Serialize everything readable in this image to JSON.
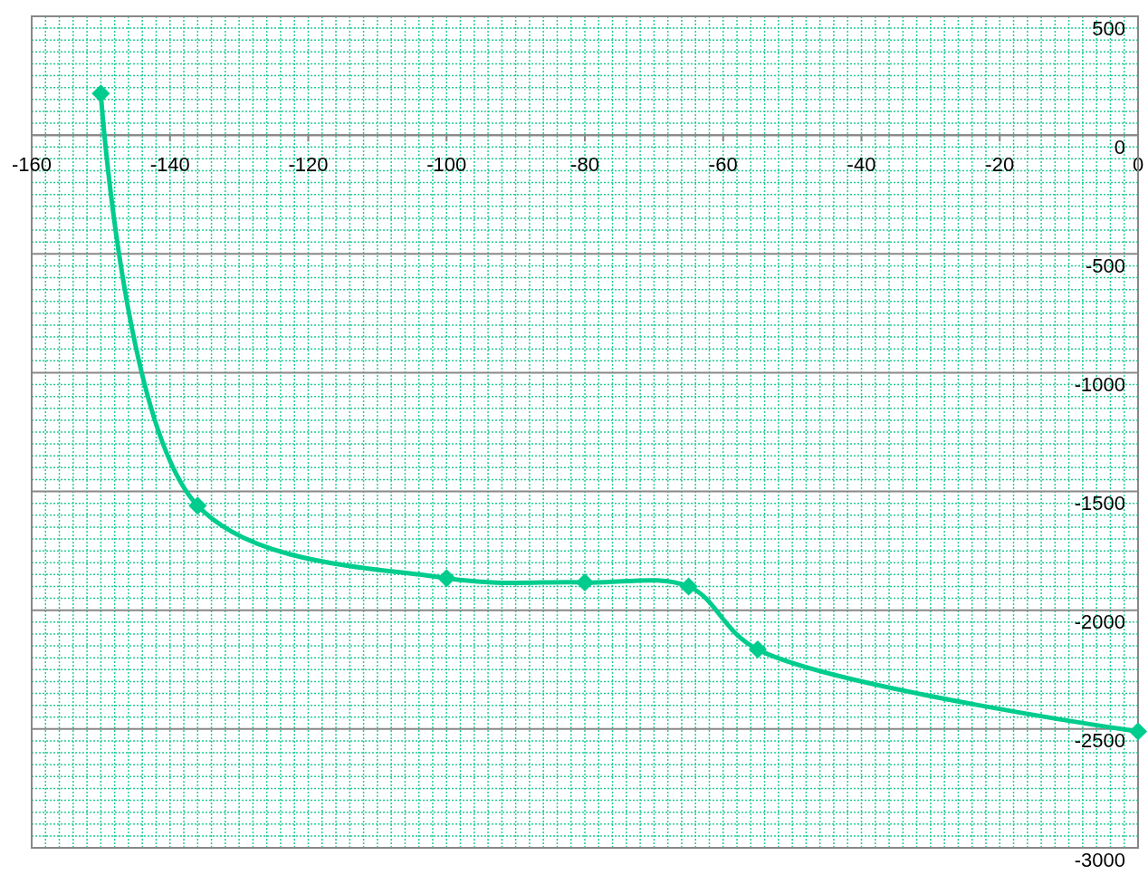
{
  "chart_data": {
    "type": "line",
    "x": [
      -150,
      -136,
      -100,
      -80,
      -65,
      -55,
      0
    ],
    "series": [
      {
        "color": "#00cc8e",
        "values": [
          175,
          -1560,
          -1865,
          -1883,
          -1900,
          -2165,
          -2510
        ]
      }
    ],
    "xlim": [
      -160,
      0
    ],
    "xticks": [
      -160,
      {
        "value": -158,
        "label": null
      },
      {
        "value": -156,
        "label": null
      },
      {
        "value": -154,
        "label": null
      },
      {
        "value": -152,
        "label": null
      },
      {
        "value": -150,
        "label": null
      },
      {
        "value": -148,
        "label": null
      },
      {
        "value": -146,
        "label": null
      },
      {
        "value": -144,
        "label": null
      },
      {
        "value": -142,
        "label": null
      },
      -140,
      {
        "value": -138,
        "label": null
      },
      {
        "value": -136,
        "label": null
      },
      {
        "value": -134,
        "label": null
      },
      {
        "value": -132,
        "label": null
      },
      {
        "value": -130,
        "label": null
      },
      {
        "value": -128,
        "label": null
      },
      {
        "value": -126,
        "label": null
      },
      {
        "value": -124,
        "label": null
      },
      {
        "value": -122,
        "label": null
      },
      -120,
      {
        "value": -118,
        "label": null
      },
      {
        "value": -116,
        "label": null
      },
      {
        "value": -114,
        "label": null
      },
      {
        "value": -112,
        "label": null
      },
      {
        "value": -110,
        "label": null
      },
      {
        "value": -108,
        "label": null
      },
      {
        "value": -106,
        "label": null
      },
      {
        "value": -104,
        "label": null
      },
      {
        "value": -102,
        "label": null
      },
      -100,
      {
        "value": -98,
        "label": null
      },
      {
        "value": -96,
        "label": null
      },
      {
        "value": -94,
        "label": null
      },
      {
        "value": -92,
        "label": null
      },
      {
        "value": -90,
        "label": null
      },
      {
        "value": -88,
        "label": null
      },
      {
        "value": -86,
        "label": null
      },
      {
        "value": -84,
        "label": null
      },
      {
        "value": -82,
        "label": null
      },
      -80,
      {
        "value": -78,
        "label": null
      },
      {
        "value": -76,
        "label": null
      },
      {
        "value": -74,
        "label": null
      },
      {
        "value": -72,
        "label": null
      },
      {
        "value": -70,
        "label": null
      },
      {
        "value": -68,
        "label": null
      },
      {
        "value": -66,
        "label": null
      },
      {
        "value": -64,
        "label": null
      },
      {
        "value": -62,
        "label": null
      },
      -60,
      {
        "value": -58,
        "label": null
      },
      {
        "value": -56,
        "label": null
      },
      {
        "value": -54,
        "label": null
      },
      {
        "value": -52,
        "label": null
      },
      {
        "value": -50,
        "label": null
      },
      {
        "value": -48,
        "label": null
      },
      {
        "value": -46,
        "label": null
      },
      {
        "value": -44,
        "label": null
      },
      {
        "value": -42,
        "label": null
      },
      -40,
      {
        "value": -38,
        "label": null
      },
      {
        "value": -36,
        "label": null
      },
      {
        "value": -34,
        "label": null
      },
      {
        "value": -32,
        "label": null
      },
      {
        "value": -30,
        "label": null
      },
      {
        "value": -28,
        "label": null
      },
      {
        "value": -26,
        "label": null
      },
      {
        "value": -24,
        "label": null
      },
      {
        "value": -22,
        "label": null
      },
      -20,
      {
        "value": -18,
        "label": null
      },
      {
        "value": -16,
        "label": null
      },
      {
        "value": -14,
        "label": null
      },
      {
        "value": -12,
        "label": null
      },
      {
        "value": -10,
        "label": null
      },
      {
        "value": -8,
        "label": null
      },
      {
        "value": -6,
        "label": null
      },
      {
        "value": -4,
        "label": null
      },
      {
        "value": -2,
        "label": null
      },
      0
    ],
    "ylim": [
      -3000,
      500
    ],
    "yticks": [
      -3000,
      {
        "value": -2950,
        "label": null
      },
      {
        "value": -2900,
        "label": null
      },
      {
        "value": -2850,
        "label": null
      },
      {
        "value": -2800,
        "label": null
      },
      {
        "value": -2750,
        "label": null
      },
      {
        "value": -2700,
        "label": null
      },
      {
        "value": -2650,
        "label": null
      },
      {
        "value": -2600,
        "label": null
      },
      {
        "value": -2550,
        "label": null
      },
      -2500,
      {
        "value": -2450,
        "label": null
      },
      {
        "value": -2400,
        "label": null
      },
      {
        "value": -2350,
        "label": null
      },
      {
        "value": -2300,
        "label": null
      },
      {
        "value": -2250,
        "label": null
      },
      {
        "value": -2200,
        "label": null
      },
      {
        "value": -2150,
        "label": null
      },
      {
        "value": -2100,
        "label": null
      },
      {
        "value": -2050,
        "label": null
      },
      -2000,
      {
        "value": -1950,
        "label": null
      },
      {
        "value": -1900,
        "label": null
      },
      {
        "value": -1850,
        "label": null
      },
      {
        "value": -1800,
        "label": null
      },
      {
        "value": -1750,
        "label": null
      },
      {
        "value": -1700,
        "label": null
      },
      {
        "value": -1650,
        "label": null
      },
      {
        "value": -1600,
        "label": null
      },
      {
        "value": -1550,
        "label": null
      },
      -1500,
      {
        "value": -1450,
        "label": null
      },
      {
        "value": -1400,
        "label": null
      },
      {
        "value": -1350,
        "label": null
      },
      {
        "value": -1300,
        "label": null
      },
      {
        "value": -1250,
        "label": null
      },
      {
        "value": -1200,
        "label": null
      },
      {
        "value": -1150,
        "label": null
      },
      {
        "value": -1100,
        "label": null
      },
      {
        "value": -1050,
        "label": null
      },
      -1000,
      {
        "value": -950,
        "label": null
      },
      {
        "value": -900,
        "label": null
      },
      {
        "value": -850,
        "label": null
      },
      {
        "value": -800,
        "label": null
      },
      {
        "value": -750,
        "label": null
      },
      {
        "value": -700,
        "label": null
      },
      {
        "value": -650,
        "label": null
      },
      {
        "value": -600,
        "label": null
      },
      {
        "value": -550,
        "label": null
      },
      -500,
      {
        "value": -450,
        "label": null
      },
      {
        "value": -400,
        "label": null
      },
      {
        "value": -350,
        "label": null
      },
      {
        "value": -300,
        "label": null
      },
      {
        "value": -250,
        "label": null
      },
      {
        "value": -200,
        "label": null
      },
      {
        "value": -150,
        "label": null
      },
      {
        "value": -100,
        "label": null
      },
      {
        "value": -50,
        "label": null
      },
      0,
      {
        "value": 50,
        "label": null
      },
      {
        "value": 100,
        "label": null
      },
      {
        "value": 150,
        "label": null
      },
      {
        "value": 200,
        "label": null
      },
      {
        "value": 250,
        "label": null
      },
      {
        "value": 300,
        "label": null
      },
      {
        "value": 350,
        "label": null
      },
      {
        "value": 400,
        "label": null
      },
      {
        "value": 450,
        "label": null
      },
      500
    ],
    "grid": true,
    "marker": "diamond",
    "line_style": "solid"
  }
}
